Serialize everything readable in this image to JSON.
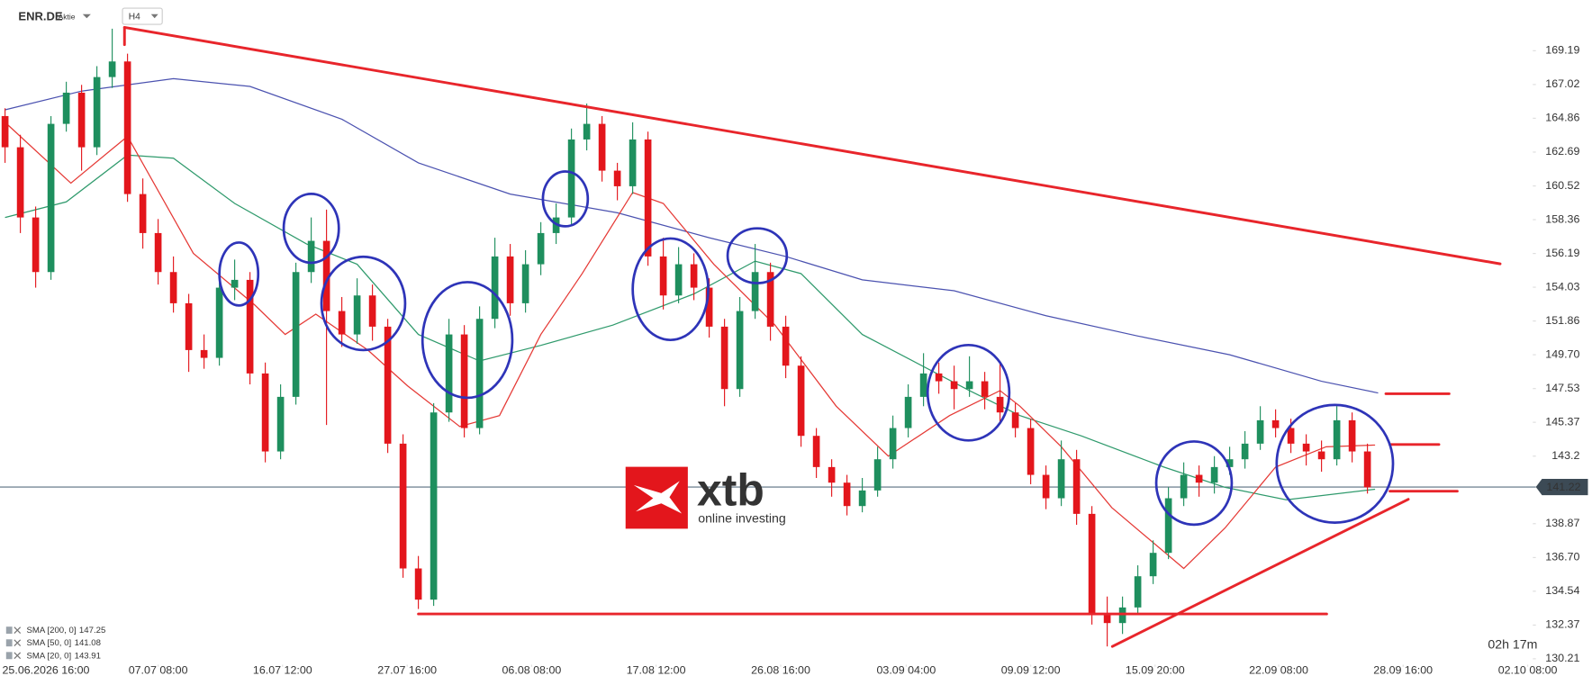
{
  "chart_data": {
    "type": "candlestick",
    "symbol": "ENR.DE",
    "instrument_type": "Aktie",
    "timeframe": "H4",
    "up_color": "#1e8f5e",
    "down_color": "#e3161c",
    "open": [
      165.0,
      163.0,
      158.5,
      155.0,
      164.5,
      166.5,
      163.0,
      167.5,
      168.5,
      160.0,
      157.5,
      155.0,
      153.0,
      150.0,
      149.5,
      154.0,
      154.5,
      148.5,
      143.5,
      147.0,
      155.0,
      157.0,
      152.5,
      151.0,
      153.5,
      151.5,
      144.0,
      136.0,
      134.0,
      146.0,
      151.0,
      145.0,
      152.0,
      156.0,
      153.0,
      155.5,
      157.5,
      158.5,
      163.5,
      164.5,
      161.5,
      160.5,
      163.5,
      156.0,
      153.5,
      155.5,
      154.0,
      151.5,
      147.5,
      152.5,
      155.0,
      151.5,
      149.0,
      144.5,
      142.5,
      141.5,
      140.0,
      141.0,
      143.0,
      145.0,
      147.0,
      148.5,
      148.0,
      147.5,
      148.0,
      147.0,
      146.0,
      145.0,
      142.0,
      140.5,
      143.0,
      139.5,
      133.0,
      132.5,
      133.5,
      135.5,
      137.0,
      140.5,
      142.0,
      141.5,
      142.5,
      143.0,
      144.0,
      145.5,
      145.0,
      144.0,
      143.5,
      143.0,
      145.5,
      143.5
    ],
    "high": [
      165.5,
      163.8,
      159.2,
      165.0,
      167.2,
      167.0,
      168.2,
      170.6,
      169.0,
      161.0,
      158.4,
      156.0,
      153.6,
      151.0,
      155.2,
      155.8,
      155.0,
      149.2,
      147.8,
      155.6,
      158.5,
      159.0,
      153.4,
      154.6,
      154.2,
      152.0,
      144.6,
      136.8,
      146.6,
      152.0,
      151.6,
      152.8,
      157.2,
      156.8,
      156.4,
      158.2,
      159.4,
      164.2,
      165.8,
      165.0,
      162.0,
      164.6,
      164.0,
      157.2,
      156.6,
      156.2,
      154.6,
      152.0,
      153.4,
      156.8,
      155.6,
      152.2,
      149.6,
      145.0,
      143.0,
      142.0,
      141.8,
      143.8,
      145.8,
      147.8,
      149.8,
      149.2,
      149.0,
      149.6,
      148.6,
      149.2,
      146.6,
      145.6,
      142.6,
      144.2,
      143.6,
      140.0,
      134.2,
      134.2,
      136.2,
      137.8,
      141.2,
      142.8,
      142.6,
      143.2,
      143.8,
      144.8,
      146.4,
      146.2,
      145.6,
      144.6,
      144.2,
      146.4,
      146.0,
      144.0
    ],
    "low": [
      162.0,
      157.5,
      154.0,
      154.5,
      164.0,
      161.5,
      162.5,
      166.8,
      159.5,
      156.5,
      154.2,
      152.4,
      148.6,
      148.8,
      149.0,
      153.2,
      147.8,
      142.8,
      143.0,
      146.5,
      154.3,
      145.2,
      150.2,
      150.4,
      150.6,
      143.4,
      135.4,
      133.4,
      133.6,
      145.4,
      144.4,
      144.6,
      151.4,
      152.2,
      152.4,
      154.8,
      156.8,
      158.0,
      162.8,
      160.8,
      159.6,
      160.0,
      155.4,
      152.6,
      153.0,
      153.2,
      150.8,
      146.4,
      147.0,
      152.0,
      150.6,
      148.2,
      143.8,
      141.8,
      140.6,
      139.4,
      139.6,
      140.6,
      142.4,
      144.4,
      146.4,
      147.2,
      146.2,
      147.0,
      146.2,
      145.4,
      144.4,
      141.4,
      139.8,
      140.0,
      138.8,
      132.4,
      131.0,
      131.8,
      133.0,
      135.0,
      136.6,
      140.0,
      140.6,
      140.8,
      142.0,
      142.4,
      143.6,
      144.4,
      143.4,
      142.6,
      142.2,
      142.6,
      142.8,
      140.8
    ],
    "close": [
      163.0,
      158.5,
      155.0,
      164.5,
      166.5,
      163.0,
      167.5,
      168.5,
      160.0,
      157.5,
      155.0,
      153.0,
      150.0,
      149.5,
      154.0,
      154.5,
      148.5,
      143.5,
      147.0,
      155.0,
      157.0,
      152.5,
      151.0,
      153.5,
      151.5,
      144.0,
      136.0,
      134.0,
      146.0,
      151.0,
      145.0,
      152.0,
      156.0,
      153.0,
      155.5,
      157.5,
      158.5,
      163.5,
      164.5,
      161.5,
      160.5,
      163.5,
      156.0,
      153.5,
      155.5,
      154.0,
      151.5,
      147.5,
      152.5,
      155.0,
      151.5,
      149.0,
      144.5,
      142.5,
      141.5,
      140.0,
      141.0,
      143.0,
      145.0,
      147.0,
      148.5,
      148.0,
      147.5,
      148.0,
      147.0,
      146.0,
      145.0,
      142.0,
      140.5,
      143.0,
      139.5,
      133.0,
      132.5,
      133.5,
      135.5,
      137.0,
      140.5,
      142.0,
      141.5,
      142.5,
      143.0,
      144.0,
      145.5,
      145.0,
      144.0,
      143.5,
      143.0,
      145.5,
      143.5,
      141.2
    ],
    "sma": [
      {
        "name": "SMA [200, 0]",
        "color": "#4b52b0",
        "x": [
          0,
          5,
          11,
          16,
          22,
          27,
          33,
          40,
          46,
          51,
          56,
          62,
          68,
          74,
          80,
          86,
          89.7
        ],
        "values": [
          165.4,
          166.6,
          167.4,
          166.9,
          164.8,
          162.0,
          160.0,
          158.8,
          157.2,
          156.0,
          154.5,
          153.8,
          152.2,
          150.9,
          149.7,
          148.0,
          147.25
        ]
      },
      {
        "name": "SMA [50, 0]",
        "color": "#2f9a6c",
        "x": [
          0,
          4,
          8,
          11,
          15,
          19.7,
          23,
          27,
          31,
          35,
          39.7,
          45,
          49,
          52,
          56,
          63,
          66.3,
          70.3,
          75.7,
          79.7,
          83.7,
          89.5
        ],
        "values": [
          158.5,
          159.5,
          162.5,
          162.3,
          159.4,
          156.8,
          155.5,
          151,
          149.3,
          150.3,
          151.6,
          153.6,
          155.7,
          154.9,
          151,
          147.4,
          145.8,
          144.5,
          142.5,
          141.2,
          140.4,
          141.08
        ]
      },
      {
        "name": "SMA [20, 0]",
        "color": "#e53935",
        "x": [
          0,
          4.3,
          8,
          12.3,
          16.3,
          18.3,
          20.3,
          23.7,
          26.3,
          29.7,
          32.3,
          35,
          37.7,
          41,
          43,
          46.3,
          50.3,
          54.3,
          57.7,
          61.7,
          65,
          66.3,
          69,
          72.3,
          77,
          79.7,
          83,
          86.3,
          89.5
        ],
        "values": [
          164.6,
          160.7,
          163.7,
          156.2,
          152.9,
          151,
          152.3,
          150,
          147.7,
          145.1,
          145.8,
          151,
          154.9,
          160.1,
          159.4,
          155.5,
          151.6,
          146.4,
          143.2,
          145.8,
          147.4,
          146.4,
          143.8,
          139.9,
          136,
          138.6,
          142.5,
          143.8,
          143.91
        ]
      }
    ],
    "last_price": 141.22,
    "xlim": [
      -0.33,
      99.67
    ],
    "xticks": [
      {
        "value": 2.67,
        "label": "25.06.2026 16:00"
      },
      {
        "value": 10,
        "label": "07.07 08:00"
      },
      {
        "value": 18.13,
        "label": "16.07 12:00"
      },
      {
        "value": 26.27,
        "label": "27.07 16:00"
      },
      {
        "value": 34.4,
        "label": "06.08 08:00"
      },
      {
        "value": 42.53,
        "label": "17.08 12:00"
      },
      {
        "value": 50.67,
        "label": "26.08 16:00"
      },
      {
        "value": 58.87,
        "label": "03.09 04:00"
      },
      {
        "value": 67,
        "label": "09.09 12:00"
      },
      {
        "value": 75.13,
        "label": "15.09 20:00"
      },
      {
        "value": 83.2,
        "label": "22.09 08:00"
      },
      {
        "value": 91.33,
        "label": "28.09 16:00"
      },
      {
        "value": 99.47,
        "label": "02.10 08:00"
      }
    ],
    "ylim": [
      129.83,
      172.44
    ],
    "yticks": [
      169.19,
      167.02,
      164.86,
      162.69,
      160.52,
      158.36,
      156.19,
      154.03,
      151.86,
      {
        "value": 149.7,
        "label": "149.70"
      },
      147.53,
      145.37,
      143.2,
      138.87,
      {
        "value": 136.7,
        "label": "136.70"
      },
      134.54,
      132.37,
      130.21
    ],
    "timer": "02h 17m"
  },
  "logo": {
    "mark": "xtb",
    "tagline": "online investing"
  }
}
